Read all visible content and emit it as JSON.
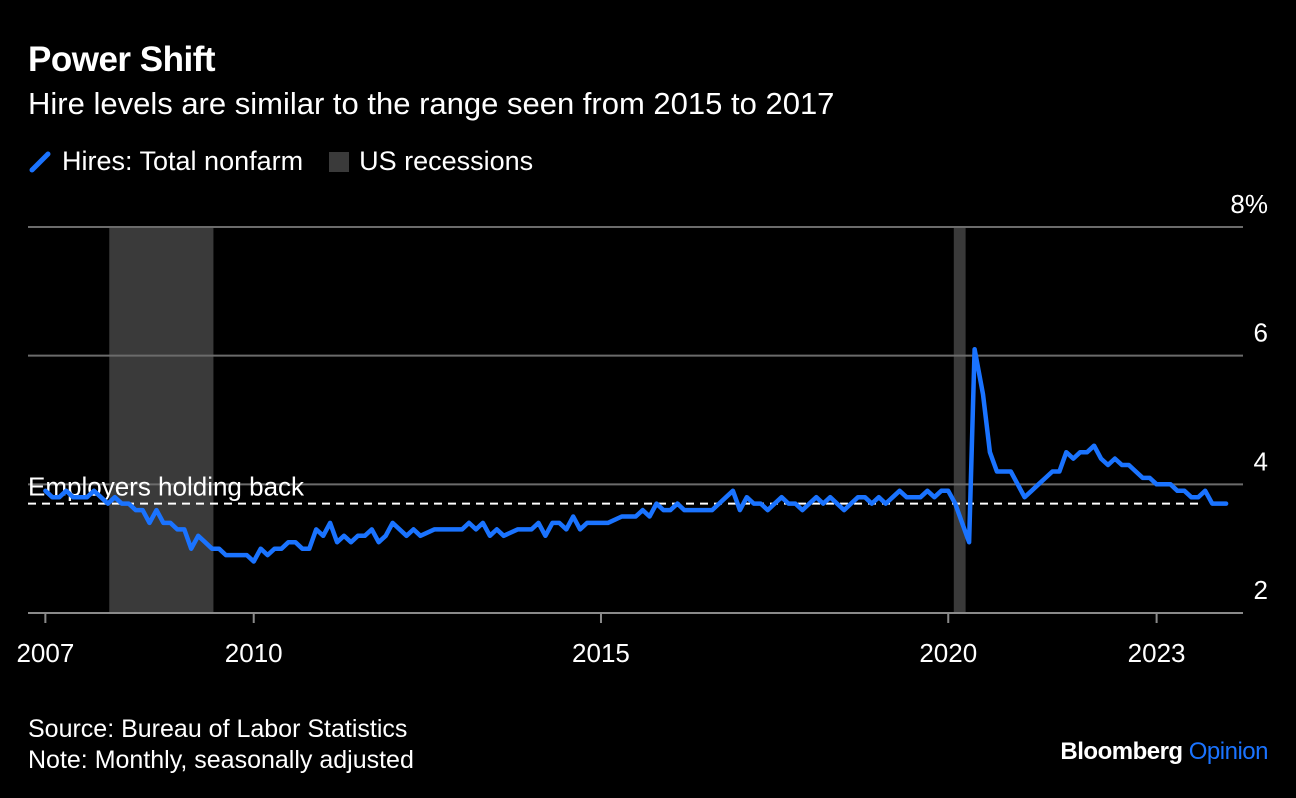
{
  "header": {
    "title": "Power Shift",
    "subtitle": "Hire levels are similar to the range seen from 2015 to 2017"
  },
  "legend": {
    "series_label": "Hires: Total nonfarm",
    "recession_label": "US recessions"
  },
  "footer": {
    "source": "Source: Bureau of Labor Statistics",
    "note": "Note: Monthly, seasonally adjusted"
  },
  "brand": {
    "name": "Bloomberg",
    "suffix": "Opinion"
  },
  "colors": {
    "series": "#1a73ff",
    "recession": "#3a3a3a",
    "grid": "#6b6b6b",
    "background": "#000000"
  },
  "chart_data": {
    "type": "line",
    "x_unit": "year",
    "y_unit": "%",
    "ylim": [
      2,
      8
    ],
    "yticks": [
      {
        "value": 2,
        "label": "2"
      },
      {
        "value": 4,
        "label": "4"
      },
      {
        "value": 6,
        "label": "6"
      },
      {
        "value": 8,
        "label": "8%"
      }
    ],
    "xlim": [
      2006.75,
      2024.1
    ],
    "xticks": [
      {
        "value": 2007,
        "label": "2007"
      },
      {
        "value": 2010,
        "label": "2010"
      },
      {
        "value": 2015,
        "label": "2015"
      },
      {
        "value": 2020,
        "label": "2020"
      },
      {
        "value": 2023,
        "label": "2023"
      }
    ],
    "recessions": [
      {
        "start": 2007.92,
        "end": 2009.42
      },
      {
        "start": 2020.08,
        "end": 2020.25
      }
    ],
    "reference_line": {
      "value": 3.7,
      "label": "Employers holding back",
      "style": "dashed"
    },
    "series": [
      {
        "name": "Hires: Total nonfarm",
        "points": [
          [
            2007.0,
            3.9
          ],
          [
            2007.1,
            3.8
          ],
          [
            2007.2,
            3.8
          ],
          [
            2007.3,
            3.9
          ],
          [
            2007.4,
            3.8
          ],
          [
            2007.5,
            3.8
          ],
          [
            2007.6,
            3.8
          ],
          [
            2007.7,
            3.9
          ],
          [
            2007.8,
            3.8
          ],
          [
            2007.9,
            3.7
          ],
          [
            2008.0,
            3.8
          ],
          [
            2008.1,
            3.7
          ],
          [
            2008.2,
            3.7
          ],
          [
            2008.3,
            3.6
          ],
          [
            2008.4,
            3.6
          ],
          [
            2008.5,
            3.4
          ],
          [
            2008.6,
            3.6
          ],
          [
            2008.7,
            3.4
          ],
          [
            2008.8,
            3.4
          ],
          [
            2008.9,
            3.3
          ],
          [
            2009.0,
            3.3
          ],
          [
            2009.1,
            3.0
          ],
          [
            2009.2,
            3.2
          ],
          [
            2009.3,
            3.1
          ],
          [
            2009.4,
            3.0
          ],
          [
            2009.5,
            3.0
          ],
          [
            2009.6,
            2.9
          ],
          [
            2009.7,
            2.9
          ],
          [
            2009.8,
            2.9
          ],
          [
            2009.9,
            2.9
          ],
          [
            2010.0,
            2.8
          ],
          [
            2010.1,
            3.0
          ],
          [
            2010.2,
            2.9
          ],
          [
            2010.3,
            3.0
          ],
          [
            2010.4,
            3.0
          ],
          [
            2010.5,
            3.1
          ],
          [
            2010.6,
            3.1
          ],
          [
            2010.7,
            3.0
          ],
          [
            2010.8,
            3.0
          ],
          [
            2010.9,
            3.3
          ],
          [
            2011.0,
            3.2
          ],
          [
            2011.1,
            3.4
          ],
          [
            2011.2,
            3.1
          ],
          [
            2011.3,
            3.2
          ],
          [
            2011.4,
            3.1
          ],
          [
            2011.5,
            3.2
          ],
          [
            2011.6,
            3.2
          ],
          [
            2011.7,
            3.3
          ],
          [
            2011.8,
            3.1
          ],
          [
            2011.9,
            3.2
          ],
          [
            2012.0,
            3.4
          ],
          [
            2012.2,
            3.2
          ],
          [
            2012.3,
            3.3
          ],
          [
            2012.4,
            3.2
          ],
          [
            2012.6,
            3.3
          ],
          [
            2012.9,
            3.3
          ],
          [
            2013.0,
            3.3
          ],
          [
            2013.1,
            3.4
          ],
          [
            2013.2,
            3.3
          ],
          [
            2013.3,
            3.4
          ],
          [
            2013.4,
            3.2
          ],
          [
            2013.5,
            3.3
          ],
          [
            2013.6,
            3.2
          ],
          [
            2013.8,
            3.3
          ],
          [
            2014.0,
            3.3
          ],
          [
            2014.1,
            3.4
          ],
          [
            2014.2,
            3.2
          ],
          [
            2014.3,
            3.4
          ],
          [
            2014.4,
            3.4
          ],
          [
            2014.5,
            3.3
          ],
          [
            2014.6,
            3.5
          ],
          [
            2014.7,
            3.3
          ],
          [
            2014.8,
            3.4
          ],
          [
            2014.9,
            3.4
          ],
          [
            2015.0,
            3.4
          ],
          [
            2015.1,
            3.4
          ],
          [
            2015.3,
            3.5
          ],
          [
            2015.4,
            3.5
          ],
          [
            2015.5,
            3.5
          ],
          [
            2015.6,
            3.6
          ],
          [
            2015.7,
            3.5
          ],
          [
            2015.8,
            3.7
          ],
          [
            2015.9,
            3.6
          ],
          [
            2016.0,
            3.6
          ],
          [
            2016.1,
            3.7
          ],
          [
            2016.2,
            3.6
          ],
          [
            2016.3,
            3.6
          ],
          [
            2016.4,
            3.6
          ],
          [
            2016.6,
            3.6
          ],
          [
            2016.7,
            3.7
          ],
          [
            2016.8,
            3.8
          ],
          [
            2016.9,
            3.9
          ],
          [
            2017.0,
            3.6
          ],
          [
            2017.1,
            3.8
          ],
          [
            2017.2,
            3.7
          ],
          [
            2017.3,
            3.7
          ],
          [
            2017.4,
            3.6
          ],
          [
            2017.5,
            3.7
          ],
          [
            2017.6,
            3.8
          ],
          [
            2017.7,
            3.7
          ],
          [
            2017.8,
            3.7
          ],
          [
            2017.9,
            3.6
          ],
          [
            2018.0,
            3.7
          ],
          [
            2018.1,
            3.8
          ],
          [
            2018.2,
            3.7
          ],
          [
            2018.3,
            3.8
          ],
          [
            2018.4,
            3.7
          ],
          [
            2018.5,
            3.6
          ],
          [
            2018.6,
            3.7
          ],
          [
            2018.7,
            3.8
          ],
          [
            2018.8,
            3.8
          ],
          [
            2018.9,
            3.7
          ],
          [
            2019.0,
            3.8
          ],
          [
            2019.1,
            3.7
          ],
          [
            2019.2,
            3.8
          ],
          [
            2019.3,
            3.9
          ],
          [
            2019.4,
            3.8
          ],
          [
            2019.5,
            3.8
          ],
          [
            2019.6,
            3.8
          ],
          [
            2019.7,
            3.9
          ],
          [
            2019.8,
            3.8
          ],
          [
            2019.9,
            3.9
          ],
          [
            2020.0,
            3.9
          ],
          [
            2020.1,
            3.7
          ],
          [
            2020.2,
            3.4
          ],
          [
            2020.3,
            3.1
          ],
          [
            2020.38,
            6.1
          ],
          [
            2020.5,
            5.4
          ],
          [
            2020.6,
            4.5
          ],
          [
            2020.7,
            4.2
          ],
          [
            2020.8,
            4.2
          ],
          [
            2020.9,
            4.2
          ],
          [
            2021.0,
            4.0
          ],
          [
            2021.1,
            3.8
          ],
          [
            2021.2,
            3.9
          ],
          [
            2021.3,
            4.0
          ],
          [
            2021.4,
            4.1
          ],
          [
            2021.5,
            4.2
          ],
          [
            2021.6,
            4.2
          ],
          [
            2021.7,
            4.5
          ],
          [
            2021.8,
            4.4
          ],
          [
            2021.9,
            4.5
          ],
          [
            2022.0,
            4.5
          ],
          [
            2022.1,
            4.6
          ],
          [
            2022.2,
            4.4
          ],
          [
            2022.3,
            4.3
          ],
          [
            2022.4,
            4.4
          ],
          [
            2022.5,
            4.3
          ],
          [
            2022.6,
            4.3
          ],
          [
            2022.7,
            4.2
          ],
          [
            2022.8,
            4.1
          ],
          [
            2022.9,
            4.1
          ],
          [
            2023.0,
            4.0
          ],
          [
            2023.1,
            4.0
          ],
          [
            2023.2,
            4.0
          ],
          [
            2023.3,
            3.9
          ],
          [
            2023.4,
            3.9
          ],
          [
            2023.5,
            3.8
          ],
          [
            2023.6,
            3.8
          ],
          [
            2023.7,
            3.9
          ],
          [
            2023.8,
            3.7
          ],
          [
            2023.9,
            3.7
          ],
          [
            2024.0,
            3.7
          ]
        ]
      }
    ]
  }
}
